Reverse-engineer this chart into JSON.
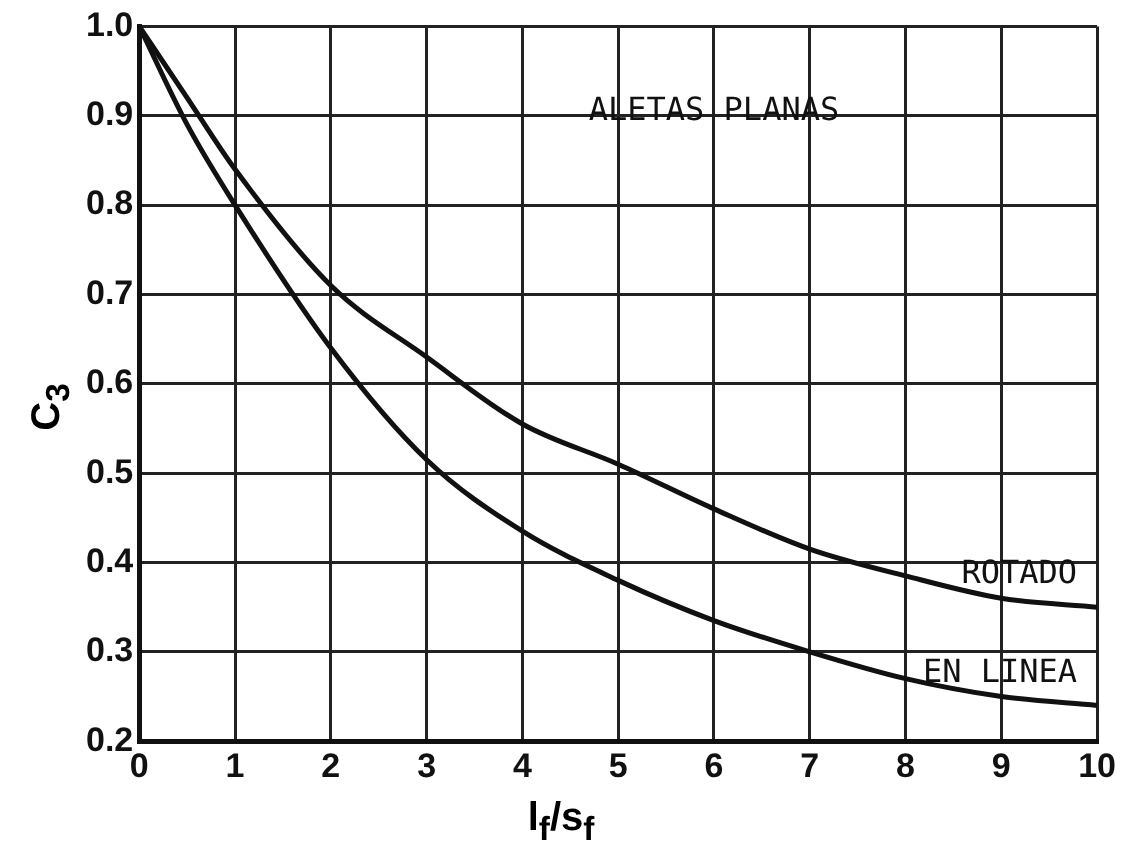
{
  "chart_data": {
    "type": "line",
    "title": "ALETAS PLANAS",
    "xlabel": "l$_{f}$/s$_{f}$",
    "ylabel": "C$_{3}$",
    "x": [
      0,
      0.5,
      1,
      2,
      3,
      4,
      5,
      6,
      7,
      8,
      9,
      10
    ],
    "series": [
      {
        "name": "ROTADO",
        "color": "#111111",
        "values": [
          1.0,
          0.92,
          0.84,
          0.71,
          0.63,
          0.555,
          0.51,
          0.46,
          0.415,
          0.385,
          0.36,
          0.35
        ]
      },
      {
        "name": "EN LINEA",
        "color": "#111111",
        "values": [
          1.0,
          0.89,
          0.8,
          0.64,
          0.515,
          0.435,
          0.38,
          0.335,
          0.3,
          0.27,
          0.25,
          0.24
        ]
      }
    ],
    "xlim": [
      0,
      10
    ],
    "xticks": [
      0,
      1,
      2,
      3,
      4,
      5,
      6,
      7,
      8,
      9,
      10
    ],
    "ylim": [
      0.2,
      1.0
    ],
    "yticks": [
      0.2,
      0.3,
      0.4,
      0.5,
      0.6,
      0.7,
      0.8,
      0.9,
      {
        "value": 1.0,
        "label": "1.0"
      }
    ],
    "grid": true,
    "legend": false,
    "marker": "none",
    "line_style": "solid"
  }
}
